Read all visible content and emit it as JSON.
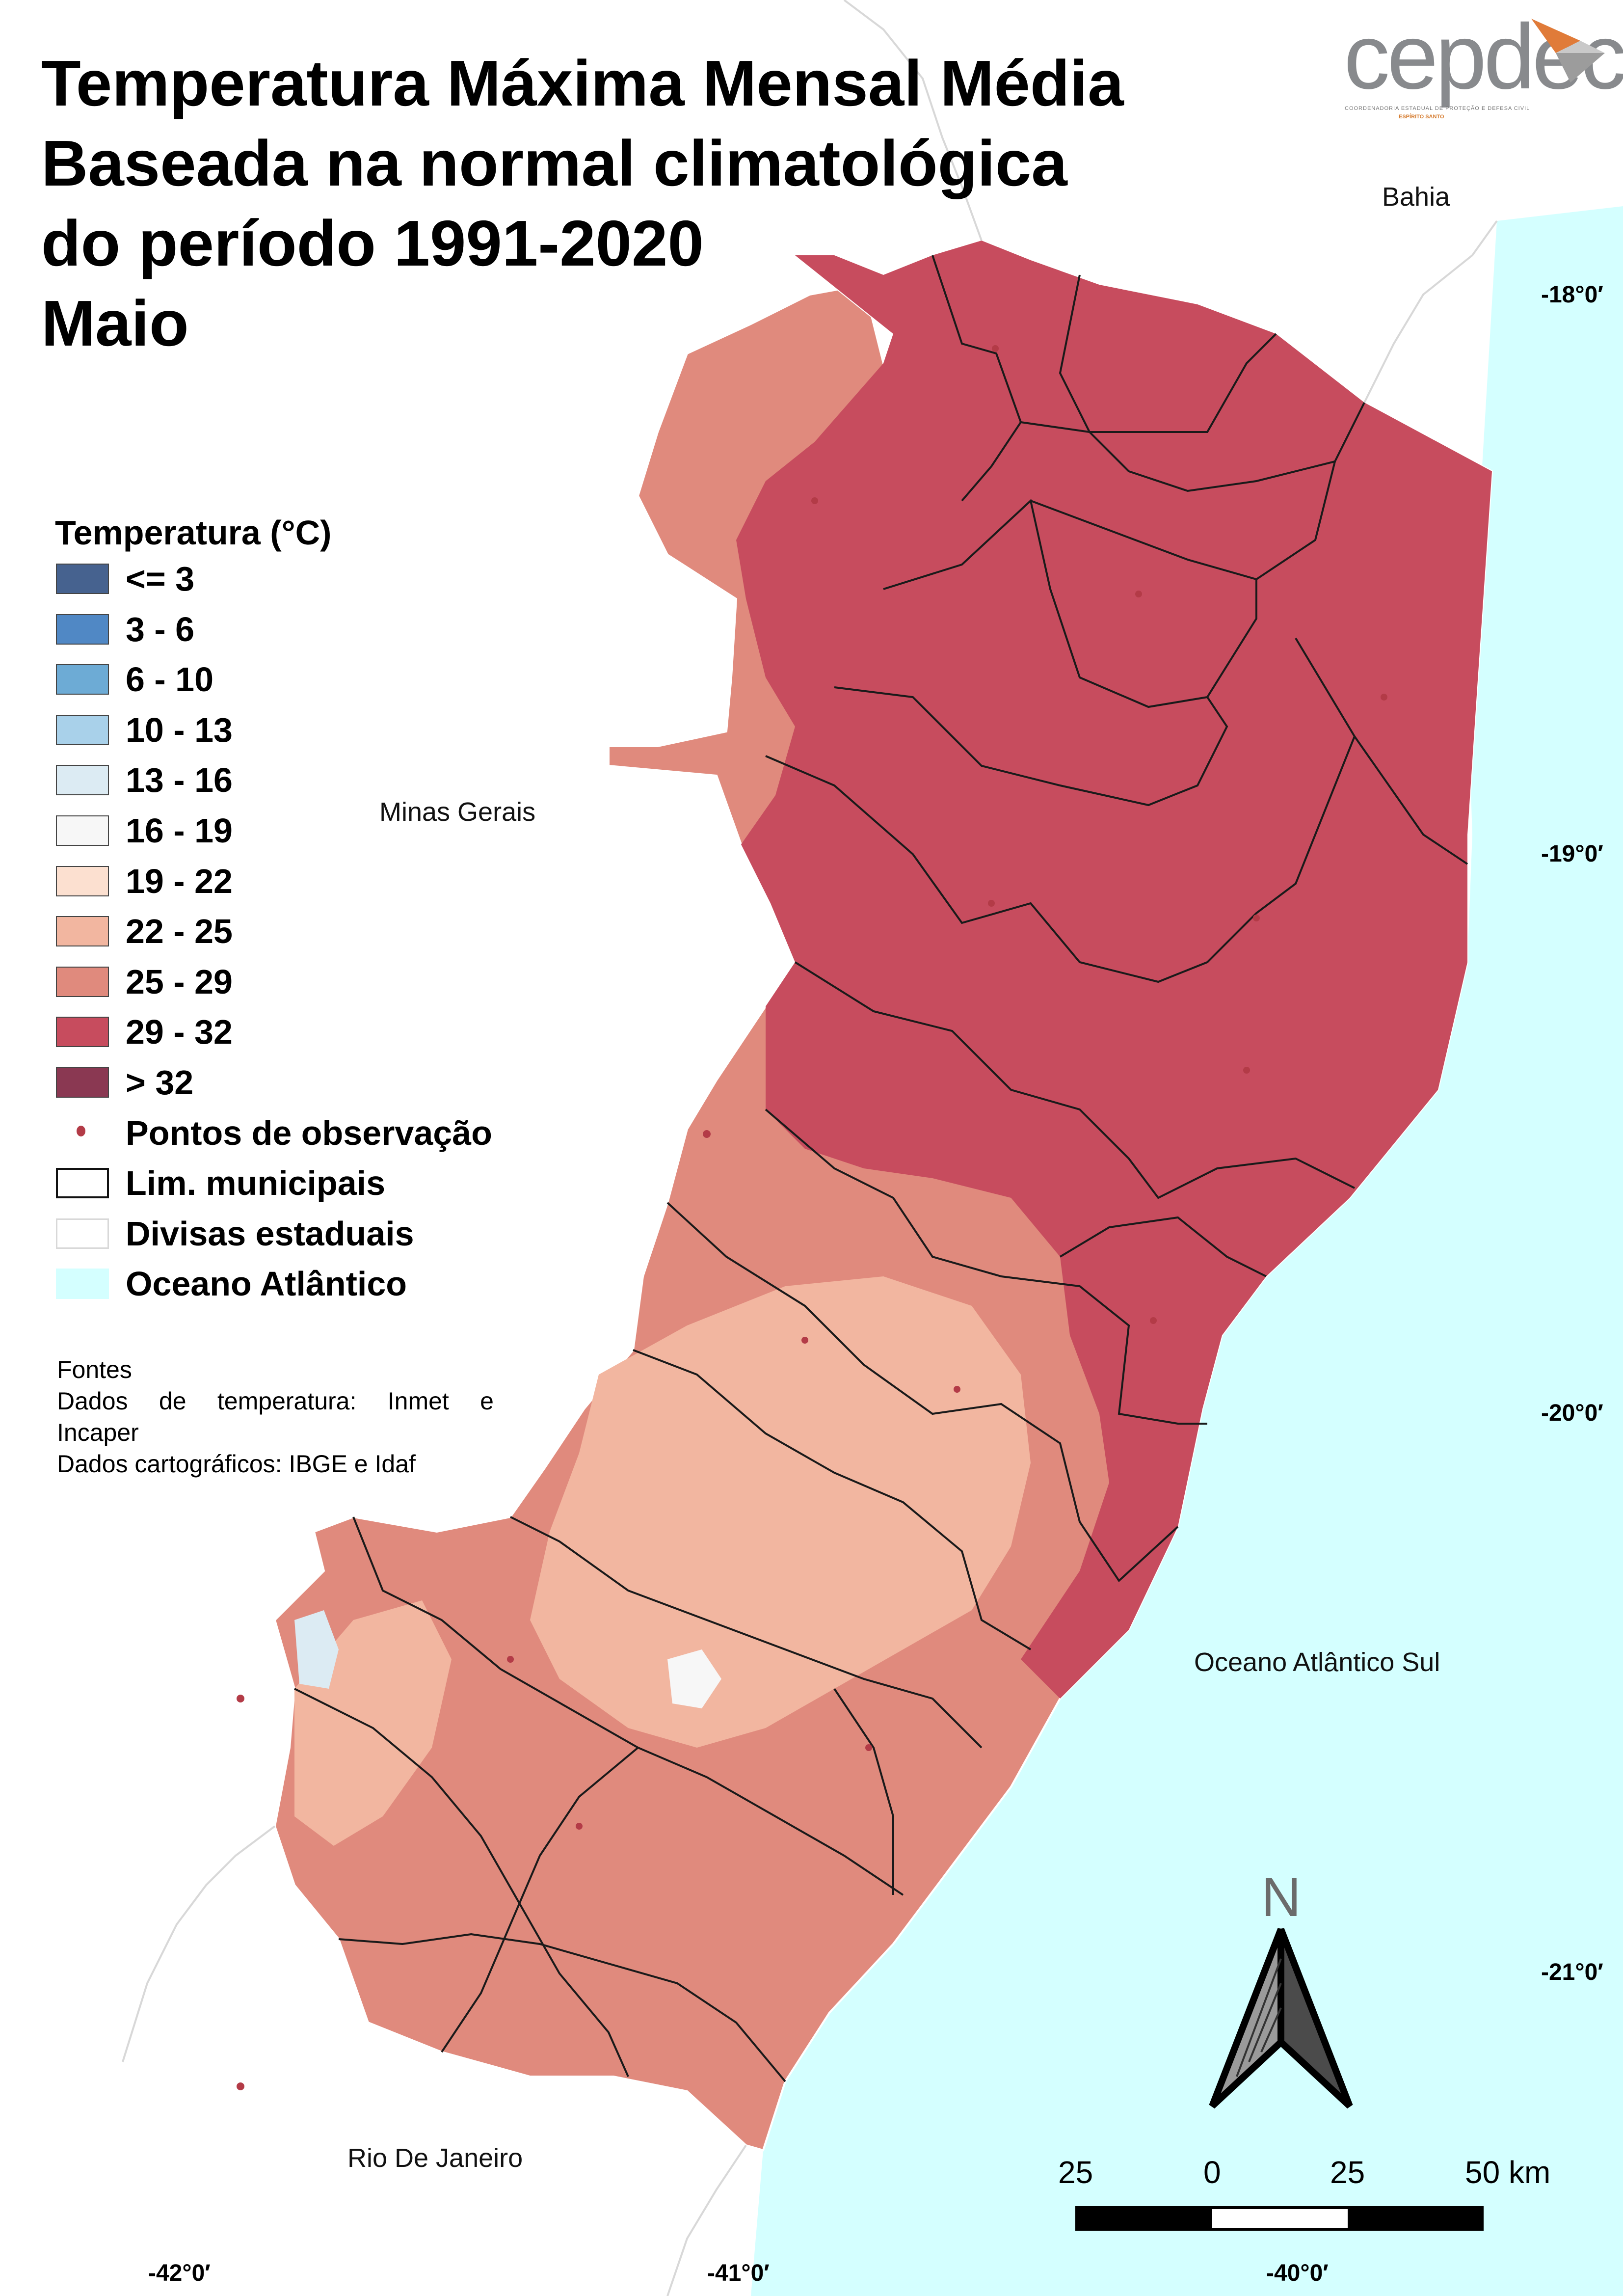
{
  "title_lines": [
    "Temperatura Máxima Mensal Média",
    "Baseada na normal climatológica",
    "do período 1991-2020",
    "Maio"
  ],
  "logo": {
    "wordmark": "cepdec",
    "subtitle": "COORDENADORIA ESTADUAL DE PROTEÇÃO E DEFESA CIVIL",
    "state": "ESPÍRITO SANTO",
    "accent_color": "#e07b39"
  },
  "legend": {
    "title": "Temperatura (°C)",
    "classes": [
      {
        "label": "<= 3",
        "color": "#46628f"
      },
      {
        "label": "3 - 6",
        "color": "#5088c5"
      },
      {
        "label": "6 - 10",
        "color": "#6dabd5"
      },
      {
        "label": "10 - 13",
        "color": "#a9d1ea"
      },
      {
        "label": "13 - 16",
        "color": "#dcebf3"
      },
      {
        "label": "16 - 19",
        "color": "#f7f7f7"
      },
      {
        "label": "19 - 22",
        "color": "#fce0d0"
      },
      {
        "label": "22 - 25",
        "color": "#f2b6a0"
      },
      {
        "label": "25 - 29",
        "color": "#e08a7d"
      },
      {
        "label": "29 - 32",
        "color": "#c74c5e"
      },
      {
        "label": "> 32",
        "color": "#8a3852"
      }
    ],
    "symbols": [
      {
        "label": "Pontos de observação",
        "kind": "observation-point"
      },
      {
        "label": "Lim. municipais",
        "kind": "municipal-boundary"
      },
      {
        "label": "Divisas estaduais",
        "kind": "state-boundary"
      },
      {
        "label": "Oceano Atlântico",
        "kind": "ocean",
        "color": "#d4ffff"
      }
    ]
  },
  "sources": {
    "heading": "Fontes",
    "temperature_line1": "Dados de temperatura: Inmet e",
    "temperature_line2": "Incaper",
    "cartography": "Dados cartográficos: IBGE e Idaf"
  },
  "place_labels": {
    "bahia": "Bahia",
    "minas_gerais": "Minas Gerais",
    "rio_de_janeiro": "Rio De Janeiro",
    "ocean": "Oceano Atlântico Sul"
  },
  "graticule": {
    "latitudes": [
      "-18°0′",
      "-19°0′",
      "-20°0′",
      "-21°0′"
    ],
    "longitudes": [
      "-42°0′",
      "-41°0′",
      "-40°0′"
    ]
  },
  "north_arrow": {
    "label": "N"
  },
  "scale_bar": {
    "ticks": [
      "25",
      "0",
      "25",
      "50 km"
    ]
  },
  "colors": {
    "ocean": "#d4ffff",
    "north_zone": "#c74c5e",
    "mid_zone": "#e08a7d",
    "south_zone": "#f2b6a0",
    "cool_spot": "#dcebf3"
  }
}
